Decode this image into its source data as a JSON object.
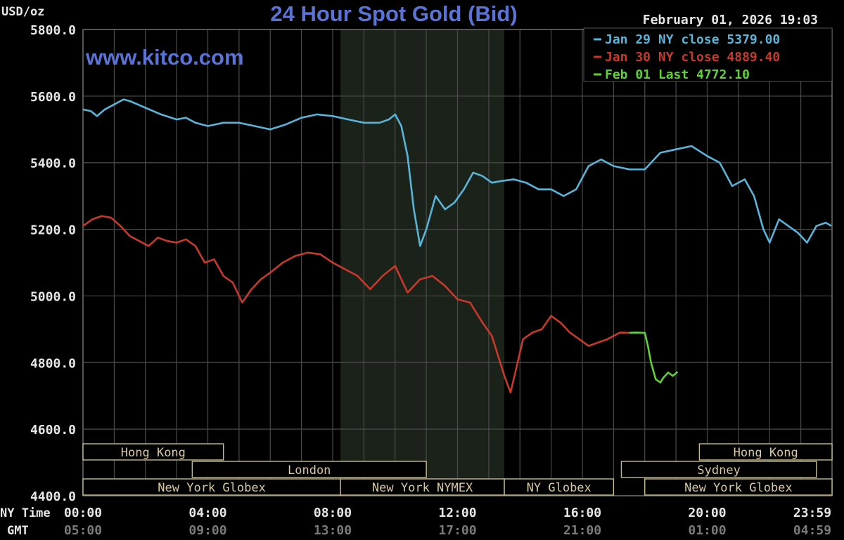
{
  "colors": {
    "background": "#000000",
    "grid": "#4a4a4a",
    "axis_text": "#e6e6e6",
    "gmt_text": "#7a7a7a",
    "title": "#5b73d6",
    "watermark": "#5b73d6",
    "nymex_shade": "#1b2219",
    "session_border": "#c9b98f",
    "session_text": "#d9c9a0",
    "series_jan29": "#5ab4d9",
    "series_jan30": "#c63a2c",
    "series_feb01": "#5fd13a"
  },
  "chart_data": {
    "type": "line",
    "title": "24 Hour Spot Gold (Bid)",
    "ylabel": "USD/oz",
    "timestamp": "February 01, 2026 19:03",
    "watermark": "www.kitco.com",
    "ylim": [
      4400,
      5800
    ],
    "yticks": [
      "5800.0",
      "5600.0",
      "5400.0",
      "5200.0",
      "5000.0",
      "4800.0",
      "4600.0",
      "4400.0"
    ],
    "ytick_values": [
      5800,
      5600,
      5400,
      5200,
      5000,
      4800,
      4600,
      4400
    ],
    "xlim": [
      0,
      24
    ],
    "xtick_hours": [
      0,
      4,
      8,
      12,
      16,
      20,
      24
    ],
    "xticks_ny": [
      "00:00",
      "04:00",
      "08:00",
      "12:00",
      "16:00",
      "20:00",
      "23:59"
    ],
    "xticks_gmt": [
      "05:00",
      "09:00",
      "13:00",
      "17:00",
      "21:00",
      "01:00",
      "04:59"
    ],
    "xrow_labels": {
      "ny": "NY Time",
      "gmt": "GMT"
    },
    "grid": true,
    "legend_position": "top-right",
    "nymex_shade_hours": [
      8.25,
      13.5
    ],
    "sessions": [
      {
        "label": "Hong Kong",
        "start": 0,
        "end": 4.5,
        "row": 0
      },
      {
        "label": "Hong Kong",
        "start": 19.75,
        "end": 24,
        "row": 0
      },
      {
        "label": "London",
        "start": 3.5,
        "end": 11,
        "row": 1
      },
      {
        "label": "Sydney",
        "start": 17.25,
        "end": 23.5,
        "row": 1
      },
      {
        "label": "New York Globex",
        "start": 0,
        "end": 8.25,
        "row": 2
      },
      {
        "label": "New York NYMEX",
        "start": 8.25,
        "end": 13.5,
        "row": 2
      },
      {
        "label": "NY Globex",
        "start": 13.5,
        "end": 17,
        "row": 2
      },
      {
        "label": "New York Globex",
        "start": 18,
        "end": 24,
        "row": 2
      }
    ],
    "series": [
      {
        "name": "Jan 29 NY close 5379.00",
        "color_key": "series_jan29",
        "x": [
          0,
          0.25,
          0.45,
          0.7,
          1,
          1.3,
          1.5,
          1.75,
          2,
          2.5,
          3,
          3.3,
          3.6,
          4,
          4.5,
          5,
          5.5,
          6,
          6.5,
          7,
          7.5,
          8,
          8.5,
          9,
          9.5,
          9.8,
          10,
          10.2,
          10.4,
          10.6,
          10.8,
          11,
          11.3,
          11.6,
          11.9,
          12.2,
          12.5,
          12.8,
          13.1,
          13.4,
          13.8,
          14.2,
          14.6,
          15,
          15.4,
          15.8,
          16.2,
          16.6,
          17,
          17.5,
          18,
          18.5,
          19,
          19.5,
          20,
          20.4,
          20.8,
          21.2,
          21.5,
          21.8,
          22,
          22.3,
          22.6,
          22.9,
          23.2,
          23.5,
          23.8,
          23.98
        ],
        "y": [
          5560,
          5555,
          5540,
          5560,
          5575,
          5590,
          5585,
          5575,
          5565,
          5545,
          5530,
          5535,
          5520,
          5510,
          5520,
          5520,
          5510,
          5500,
          5515,
          5535,
          5545,
          5540,
          5530,
          5520,
          5520,
          5530,
          5545,
          5510,
          5420,
          5260,
          5150,
          5200,
          5300,
          5260,
          5280,
          5320,
          5370,
          5360,
          5340,
          5345,
          5350,
          5340,
          5320,
          5320,
          5300,
          5320,
          5390,
          5410,
          5390,
          5380,
          5380,
          5430,
          5440,
          5450,
          5420,
          5400,
          5330,
          5350,
          5300,
          5200,
          5160,
          5230,
          5210,
          5190,
          5160,
          5210,
          5220,
          5210
        ]
      },
      {
        "name": "Jan 30 NY close 4889.40",
        "color_key": "series_jan30",
        "x": [
          0,
          0.3,
          0.6,
          0.9,
          1.2,
          1.5,
          1.8,
          2.1,
          2.4,
          2.7,
          3,
          3.3,
          3.6,
          3.9,
          4.2,
          4.5,
          4.8,
          5.1,
          5.4,
          5.7,
          6,
          6.4,
          6.8,
          7.2,
          7.6,
          8,
          8.4,
          8.8,
          9.2,
          9.6,
          10,
          10.4,
          10.8,
          11.2,
          11.6,
          12,
          12.4,
          12.8,
          13.1,
          13.3,
          13.5,
          13.7,
          13.9,
          14.1,
          14.4,
          14.7,
          15,
          15.3,
          15.6,
          15.9,
          16.2,
          16.5,
          16.8,
          17,
          17.2,
          17.5
        ],
        "y": [
          5210,
          5230,
          5240,
          5235,
          5210,
          5180,
          5165,
          5150,
          5175,
          5165,
          5160,
          5170,
          5150,
          5100,
          5110,
          5060,
          5040,
          4980,
          5020,
          5050,
          5070,
          5100,
          5120,
          5130,
          5125,
          5100,
          5080,
          5060,
          5020,
          5060,
          5090,
          5010,
          5050,
          5060,
          5030,
          4990,
          4980,
          4920,
          4880,
          4820,
          4760,
          4710,
          4790,
          4870,
          4890,
          4900,
          4940,
          4920,
          4890,
          4870,
          4850,
          4860,
          4870,
          4880,
          4890,
          4889.4
        ]
      },
      {
        "name": "Feb 01 Last 4772.10",
        "color_key": "series_feb01",
        "x": [
          17.5,
          17.75,
          18,
          18.1,
          18.2,
          18.35,
          18.5,
          18.6,
          18.75,
          18.9,
          19.05
        ],
        "y": [
          4889.4,
          4890,
          4889,
          4850,
          4800,
          4750,
          4740,
          4755,
          4770,
          4760,
          4772.1
        ]
      }
    ]
  }
}
